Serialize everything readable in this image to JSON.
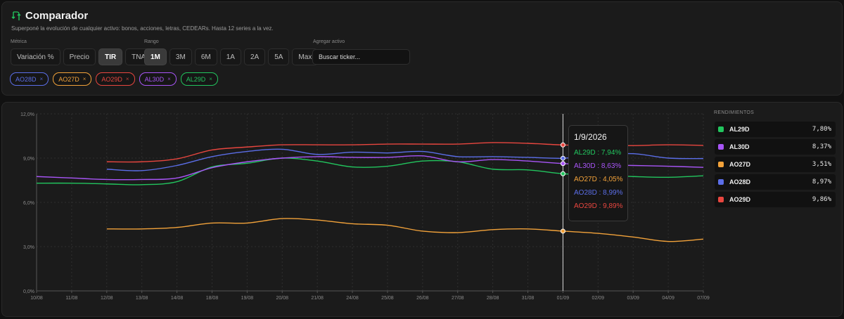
{
  "header": {
    "title": "Comparador",
    "subtitle": "Superponé la evolución de cualquier activo: bonos, acciones, letras, CEDEARs. Hasta 12 series a la vez."
  },
  "controls": {
    "metric_label": "Métrica",
    "metric_options": [
      "Variación %",
      "Precio",
      "TIR",
      "TNA"
    ],
    "metric_selected": "TIR",
    "range_label": "Rango",
    "range_options": [
      "1M",
      "3M",
      "6M",
      "1A",
      "2A",
      "5A",
      "Max"
    ],
    "range_selected": "1M",
    "add_label": "Agregar activo",
    "search_placeholder": "Buscar ticker..."
  },
  "chips": [
    {
      "name": "AO28D",
      "color": "#5b6ee8"
    },
    {
      "name": "AO27D",
      "color": "#f2a23a"
    },
    {
      "name": "AO29D",
      "color": "#e8463f"
    },
    {
      "name": "AL30D",
      "color": "#a855f7"
    },
    {
      "name": "AL29D",
      "color": "#22c55e"
    }
  ],
  "chip_remove_glyph": "×",
  "legend": {
    "title": "RENDIMIENTOS",
    "items": [
      {
        "name": "AL29D",
        "value": "7,80%",
        "color": "#22c55e"
      },
      {
        "name": "AL30D",
        "value": "8,37%",
        "color": "#a855f7"
      },
      {
        "name": "AO27D",
        "value": "3,51%",
        "color": "#f2a23a"
      },
      {
        "name": "AO28D",
        "value": "8,97%",
        "color": "#5b6ee8"
      },
      {
        "name": "AO29D",
        "value": "9,86%",
        "color": "#e8463f"
      }
    ]
  },
  "tooltip": {
    "date": "1/9/2026",
    "rows": [
      {
        "text": "AL29D : 7,94%",
        "color": "#22c55e"
      },
      {
        "text": "AL30D : 8,63%",
        "color": "#a855f7"
      },
      {
        "text": "AO27D : 4,05%",
        "color": "#f2a23a"
      },
      {
        "text": "AO28D : 8,99%",
        "color": "#5b6ee8"
      },
      {
        "text": "AO29D : 9,89%",
        "color": "#e8463f"
      }
    ]
  },
  "chart_data": {
    "type": "line",
    "x": [
      "10/08",
      "11/08",
      "12/08",
      "13/08",
      "14/08",
      "18/08",
      "19/08",
      "20/08",
      "21/08",
      "24/08",
      "25/08",
      "26/08",
      "27/08",
      "28/08",
      "31/08",
      "01/09",
      "02/09",
      "03/09",
      "04/09",
      "07/09"
    ],
    "ylim": [
      0,
      12
    ],
    "yticks": [
      "0,0%",
      "3,0%",
      "6,0%",
      "9,0%",
      "12,0%"
    ],
    "grid": true,
    "hover_index": 15,
    "series": [
      {
        "name": "AL29D",
        "color": "#22c55e",
        "values": [
          7.3,
          7.3,
          7.25,
          7.2,
          7.4,
          8.4,
          8.65,
          9.0,
          8.8,
          8.4,
          8.45,
          8.8,
          8.75,
          8.25,
          8.2,
          7.94,
          7.85,
          7.75,
          7.7,
          7.8
        ]
      },
      {
        "name": "AL30D",
        "color": "#a855f7",
        "values": [
          7.75,
          7.65,
          7.55,
          7.55,
          7.65,
          8.35,
          8.75,
          9.0,
          9.1,
          9.05,
          9.05,
          9.15,
          8.75,
          8.9,
          8.8,
          8.63,
          8.55,
          8.5,
          8.45,
          8.37
        ]
      },
      {
        "name": "AO27D",
        "color": "#f2a23a",
        "values": [
          null,
          null,
          4.2,
          4.2,
          4.3,
          4.6,
          4.6,
          4.9,
          4.8,
          4.55,
          4.45,
          4.05,
          3.95,
          4.15,
          4.2,
          4.05,
          3.9,
          3.65,
          3.35,
          3.51
        ]
      },
      {
        "name": "AO28D",
        "color": "#5b6ee8",
        "values": [
          null,
          null,
          8.25,
          8.15,
          8.5,
          9.1,
          9.45,
          9.6,
          9.25,
          9.4,
          9.35,
          9.45,
          9.1,
          9.1,
          9.05,
          8.99,
          9.2,
          9.3,
          9.0,
          8.97
        ]
      },
      {
        "name": "AO29D",
        "color": "#e8463f",
        "values": [
          null,
          null,
          8.75,
          8.75,
          8.95,
          9.55,
          9.75,
          9.9,
          9.9,
          9.9,
          9.95,
          9.95,
          9.95,
          10.05,
          10.0,
          9.89,
          9.85,
          9.85,
          9.9,
          9.86
        ]
      }
    ]
  }
}
